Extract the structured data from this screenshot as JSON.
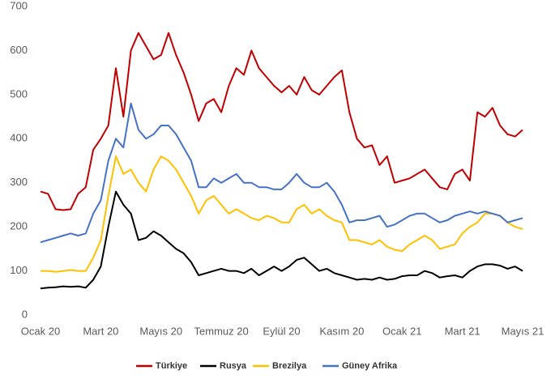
{
  "chart_data": {
    "type": "line",
    "categories": [
      "Ocak 20",
      null,
      null,
      null,
      null,
      null,
      null,
      null,
      "Mart 20",
      null,
      null,
      null,
      null,
      null,
      null,
      null,
      "Mayıs 20",
      null,
      null,
      null,
      null,
      null,
      null,
      null,
      "Temmuz 20",
      null,
      null,
      null,
      null,
      null,
      null,
      null,
      "Eylül 20",
      null,
      null,
      null,
      null,
      null,
      null,
      null,
      "Kasım 20",
      null,
      null,
      null,
      null,
      null,
      null,
      null,
      "Ocak 21",
      null,
      null,
      null,
      null,
      null,
      null,
      null,
      "Mart 21",
      null,
      null,
      null,
      null,
      null,
      null,
      null,
      "Mayıs 21"
    ],
    "series": [
      {
        "name": "Türkiye",
        "color": "#c00000",
        "values": [
          280,
          275,
          240,
          238,
          240,
          275,
          290,
          375,
          400,
          430,
          560,
          450,
          600,
          640,
          610,
          580,
          590,
          640,
          590,
          550,
          500,
          440,
          480,
          490,
          460,
          520,
          560,
          545,
          600,
          560,
          540,
          520,
          505,
          520,
          500,
          540,
          510,
          500,
          520,
          540,
          555,
          460,
          400,
          380,
          385,
          340,
          360,
          300,
          305,
          310,
          320,
          330,
          310,
          290,
          285,
          320,
          330,
          305,
          460,
          450,
          470,
          430,
          410,
          405,
          420
        ]
      },
      {
        "name": "Rusya",
        "color": "#000000",
        "values": [
          60,
          62,
          63,
          65,
          64,
          65,
          62,
          80,
          110,
          200,
          280,
          250,
          230,
          170,
          175,
          190,
          180,
          165,
          150,
          140,
          120,
          90,
          95,
          100,
          105,
          100,
          100,
          95,
          105,
          90,
          100,
          110,
          100,
          110,
          125,
          130,
          115,
          100,
          105,
          95,
          90,
          85,
          80,
          82,
          80,
          85,
          80,
          82,
          88,
          90,
          90,
          100,
          95,
          85,
          88,
          90,
          85,
          100,
          110,
          115,
          115,
          112,
          105,
          110,
          100
        ]
      },
      {
        "name": "Brezilya",
        "color": "#ffc000",
        "values": [
          100,
          100,
          98,
          100,
          102,
          100,
          100,
          130,
          170,
          270,
          360,
          320,
          330,
          300,
          280,
          330,
          360,
          350,
          330,
          300,
          270,
          230,
          260,
          270,
          250,
          230,
          240,
          230,
          220,
          215,
          225,
          220,
          210,
          210,
          240,
          250,
          230,
          240,
          225,
          215,
          210,
          170,
          170,
          165,
          160,
          170,
          155,
          148,
          145,
          160,
          170,
          180,
          170,
          150,
          155,
          160,
          185,
          200,
          210,
          230,
          230,
          225,
          210,
          200,
          195
        ]
      },
      {
        "name": "Güney Afrika",
        "color": "#4472c4",
        "values": [
          165,
          170,
          175,
          180,
          185,
          180,
          185,
          230,
          260,
          350,
          400,
          380,
          480,
          420,
          400,
          410,
          430,
          430,
          410,
          380,
          350,
          290,
          290,
          310,
          300,
          310,
          320,
          300,
          300,
          290,
          290,
          285,
          285,
          300,
          320,
          300,
          290,
          290,
          300,
          280,
          250,
          210,
          215,
          215,
          220,
          225,
          200,
          205,
          215,
          225,
          230,
          230,
          220,
          210,
          215,
          225,
          230,
          235,
          230,
          235,
          230,
          225,
          210,
          215,
          220
        ]
      }
    ],
    "ylim": [
      0,
      700
    ],
    "yticks": [
      0,
      100,
      200,
      300,
      400,
      500,
      600,
      700
    ],
    "legend": "bottom"
  }
}
